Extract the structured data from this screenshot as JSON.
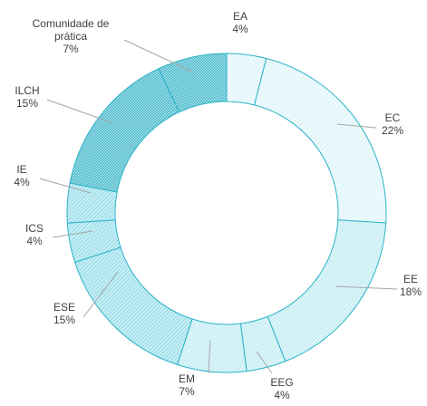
{
  "chart_data": {
    "type": "pie",
    "donut": true,
    "title": "",
    "legend": "none",
    "slices": [
      {
        "name": "EA",
        "value": 4,
        "label_lines": [
          "EA",
          "4%"
        ],
        "fill": "#ecfafd",
        "pattern": "light"
      },
      {
        "name": "EC",
        "value": 22,
        "label_lines": [
          "EC",
          "22%"
        ],
        "fill": "#ecfafd",
        "pattern": "light"
      },
      {
        "name": "EE",
        "value": 18,
        "label_lines": [
          "EE",
          "18%"
        ],
        "fill": "#e6f8fb",
        "pattern": "medium"
      },
      {
        "name": "EEG",
        "value": 4,
        "label_lines": [
          "EEG",
          "4%"
        ],
        "fill": "#d6f3f7",
        "pattern": "medium"
      },
      {
        "name": "EM",
        "value": 7,
        "label_lines": [
          "EM",
          "7%"
        ],
        "fill": "#d0f1f6",
        "pattern": "medium"
      },
      {
        "name": "ESE",
        "value": 15,
        "label_lines": [
          "ESE",
          "15%"
        ],
        "fill": "#c4edf3",
        "pattern": "dense"
      },
      {
        "name": "ICS",
        "value": 4,
        "label_lines": [
          "ICS",
          "4%"
        ],
        "fill": "#b8e9f0",
        "pattern": "dense"
      },
      {
        "name": "IE",
        "value": 4,
        "label_lines": [
          "IE",
          "4%"
        ],
        "fill": "#aee5ed",
        "pattern": "dense"
      },
      {
        "name": "ILCH",
        "value": 15,
        "label_lines": [
          "ILCH",
          "15%"
        ],
        "fill": "#a6e2eb",
        "pattern": "cross"
      },
      {
        "name": "Comunidade de prática",
        "value": 7,
        "label_lines": [
          "Comunidade de",
          "prática",
          "7%"
        ],
        "fill": "#9ddfe8",
        "pattern": "cross"
      }
    ],
    "colors": {
      "stroke": "#2bb3c8",
      "hatch": "#2bb3c8",
      "leader": "#a6a6a6",
      "text": "#404040"
    }
  }
}
